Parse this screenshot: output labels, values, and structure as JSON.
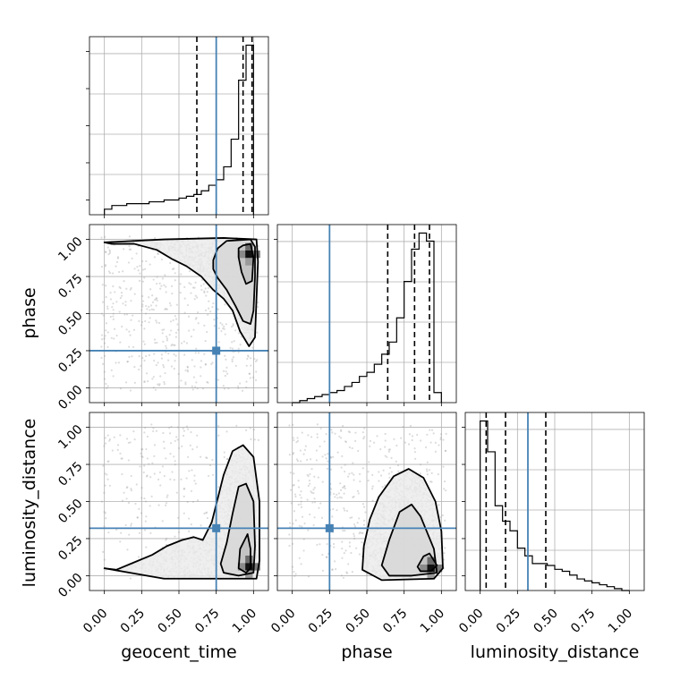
{
  "chart_data": {
    "type": "corner",
    "parameters": [
      "geocent_time",
      "phase",
      "luminosity_distance"
    ],
    "axis_range": [
      -0.1,
      1.1
    ],
    "tick_labels": [
      "0.00",
      "0.25",
      "0.50",
      "0.75",
      "1.00"
    ],
    "tick_values": [
      0.0,
      0.25,
      0.5,
      0.75,
      1.0
    ],
    "grid": true,
    "colors": {
      "truth": "#4682b4",
      "hist": "#000000",
      "quantile": "#000000",
      "samples": "#9a9a9a"
    },
    "truths": {
      "geocent_time": 0.75,
      "phase": 0.25,
      "luminosity_distance": 0.32
    },
    "quantiles": {
      "geocent_time": [
        0.62,
        0.93,
        0.99
      ],
      "phase": [
        0.64,
        0.82,
        0.92
      ],
      "luminosity_distance": [
        0.04,
        0.17,
        0.44
      ]
    },
    "histograms": {
      "geocent_time": {
        "edges": [
          0.0,
          0.05,
          0.1,
          0.15,
          0.2,
          0.25,
          0.3,
          0.35,
          0.4,
          0.45,
          0.5,
          0.55,
          0.6,
          0.65,
          0.7,
          0.75,
          0.8,
          0.85,
          0.9,
          0.95,
          1.0
        ],
        "counts": [
          0.03,
          0.05,
          0.05,
          0.06,
          0.06,
          0.06,
          0.07,
          0.07,
          0.08,
          0.08,
          0.09,
          0.1,
          0.11,
          0.13,
          0.16,
          0.19,
          0.26,
          0.41,
          0.73,
          0.92
        ]
      },
      "phase": {
        "edges": [
          0.0,
          0.05,
          0.1,
          0.15,
          0.2,
          0.25,
          0.3,
          0.35,
          0.4,
          0.45,
          0.5,
          0.55,
          0.6,
          0.65,
          0.7,
          0.75,
          0.8,
          0.85,
          0.9,
          0.95,
          1.0
        ],
        "counts": [
          0.0,
          0.01,
          0.02,
          0.03,
          0.04,
          0.05,
          0.06,
          0.08,
          0.1,
          0.13,
          0.15,
          0.19,
          0.24,
          0.3,
          0.42,
          0.6,
          0.76,
          0.84,
          0.8,
          0.05
        ]
      },
      "luminosity_distance": {
        "edges": [
          0.0,
          0.05,
          0.1,
          0.15,
          0.2,
          0.25,
          0.3,
          0.35,
          0.4,
          0.45,
          0.5,
          0.55,
          0.6,
          0.65,
          0.7,
          0.75,
          0.8,
          0.85,
          0.9,
          0.95,
          1.0
        ],
        "counts": [
          0.88,
          0.72,
          0.44,
          0.36,
          0.31,
          0.22,
          0.18,
          0.14,
          0.14,
          0.13,
          0.11,
          0.1,
          0.08,
          0.06,
          0.05,
          0.04,
          0.03,
          0.02,
          0.01,
          0.0
        ]
      }
    },
    "panels": [
      {
        "x": "geocent_time",
        "y": "phase",
        "density_peak": [
          0.97,
          0.9
        ],
        "contours": [
          [
            [
              0.9,
              0.94
            ],
            [
              0.93,
              0.96
            ],
            [
              0.98,
              0.97
            ],
            [
              1.0,
              0.88
            ],
            [
              0.99,
              0.72
            ],
            [
              0.95,
              0.7
            ],
            [
              0.92,
              0.78
            ],
            [
              0.9,
              0.88
            ]
          ],
          [
            [
              0.73,
              0.86
            ],
            [
              0.76,
              0.94
            ],
            [
              0.82,
              0.99
            ],
            [
              0.98,
              1.0
            ],
            [
              1.01,
              0.95
            ],
            [
              1.01,
              0.75
            ],
            [
              1.0,
              0.52
            ],
            [
              0.98,
              0.43
            ],
            [
              0.93,
              0.45
            ],
            [
              0.88,
              0.55
            ],
            [
              0.82,
              0.66
            ],
            [
              0.76,
              0.74
            ],
            [
              0.73,
              0.8
            ]
          ],
          [
            [
              0.0,
              0.98
            ],
            [
              0.05,
              0.97
            ],
            [
              0.2,
              0.97
            ],
            [
              0.35,
              0.93
            ],
            [
              0.45,
              0.87
            ],
            [
              0.55,
              0.82
            ],
            [
              0.65,
              0.75
            ],
            [
              0.73,
              0.66
            ],
            [
              0.8,
              0.6
            ],
            [
              0.86,
              0.52
            ],
            [
              0.91,
              0.38
            ],
            [
              0.97,
              0.28
            ],
            [
              1.01,
              0.34
            ],
            [
              1.02,
              0.6
            ],
            [
              1.03,
              0.85
            ],
            [
              1.02,
              1.0
            ],
            [
              0.8,
              1.01
            ],
            [
              0.4,
              1.0
            ],
            [
              0.0,
              0.98
            ]
          ]
        ]
      },
      {
        "x": "geocent_time",
        "y": "luminosity_distance",
        "density_peak": [
          0.97,
          0.06
        ],
        "contours": [
          [
            [
              0.9,
              0.05
            ],
            [
              0.91,
              0.18
            ],
            [
              0.96,
              0.28
            ],
            [
              0.98,
              0.18
            ],
            [
              0.98,
              0.05
            ],
            [
              0.95,
              0.02
            ]
          ],
          [
            [
              0.78,
              0.08
            ],
            [
              0.82,
              0.22
            ],
            [
              0.86,
              0.42
            ],
            [
              0.9,
              0.6
            ],
            [
              0.95,
              0.62
            ],
            [
              1.0,
              0.5
            ],
            [
              1.01,
              0.2
            ],
            [
              1.0,
              0.02
            ],
            [
              0.9,
              0.0
            ],
            [
              0.8,
              0.02
            ]
          ],
          [
            [
              0.0,
              0.05
            ],
            [
              0.08,
              0.04
            ],
            [
              0.2,
              0.09
            ],
            [
              0.32,
              0.14
            ],
            [
              0.42,
              0.2
            ],
            [
              0.52,
              0.24
            ],
            [
              0.6,
              0.26
            ],
            [
              0.66,
              0.24
            ],
            [
              0.72,
              0.36
            ],
            [
              0.76,
              0.52
            ],
            [
              0.8,
              0.68
            ],
            [
              0.86,
              0.84
            ],
            [
              0.93,
              0.88
            ],
            [
              1.0,
              0.8
            ],
            [
              1.04,
              0.5
            ],
            [
              1.04,
              0.1
            ],
            [
              1.02,
              -0.02
            ],
            [
              0.4,
              -0.02
            ],
            [
              0.0,
              0.05
            ]
          ]
        ]
      },
      {
        "x": "phase",
        "y": "luminosity_distance",
        "density_peak": [
          0.93,
          0.05
        ],
        "contours": [
          [
            [
              0.84,
              0.06
            ],
            [
              0.88,
              0.13
            ],
            [
              0.92,
              0.15
            ],
            [
              0.97,
              0.07
            ],
            [
              0.93,
              0.03
            ],
            [
              0.86,
              0.03
            ]
          ],
          [
            [
              0.6,
              0.07
            ],
            [
              0.65,
              0.24
            ],
            [
              0.72,
              0.43
            ],
            [
              0.8,
              0.48
            ],
            [
              0.86,
              0.4
            ],
            [
              0.95,
              0.18
            ],
            [
              0.97,
              0.02
            ],
            [
              0.8,
              0.0
            ],
            [
              0.65,
              0.0
            ]
          ],
          [
            [
              0.47,
              0.04
            ],
            [
              0.48,
              0.2
            ],
            [
              0.52,
              0.38
            ],
            [
              0.58,
              0.53
            ],
            [
              0.68,
              0.67
            ],
            [
              0.78,
              0.72
            ],
            [
              0.88,
              0.66
            ],
            [
              0.96,
              0.5
            ],
            [
              1.0,
              0.3
            ],
            [
              1.01,
              0.05
            ],
            [
              0.95,
              -0.02
            ],
            [
              0.6,
              -0.03
            ],
            [
              0.47,
              0.04
            ]
          ]
        ]
      }
    ]
  }
}
